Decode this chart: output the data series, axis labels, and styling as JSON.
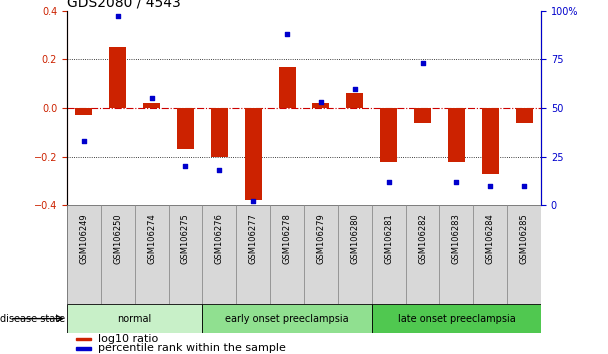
{
  "title": "GDS2080 / 4543",
  "samples": [
    "GSM106249",
    "GSM106250",
    "GSM106274",
    "GSM106275",
    "GSM106276",
    "GSM106277",
    "GSM106278",
    "GSM106279",
    "GSM106280",
    "GSM106281",
    "GSM106282",
    "GSM106283",
    "GSM106284",
    "GSM106285"
  ],
  "log10_ratio": [
    -0.03,
    0.25,
    0.02,
    -0.17,
    -0.2,
    -0.38,
    0.17,
    0.02,
    0.06,
    -0.22,
    -0.06,
    -0.22,
    -0.27,
    -0.06
  ],
  "percentile_rank": [
    33,
    97,
    55,
    20,
    18,
    2,
    88,
    53,
    60,
    12,
    73,
    12,
    10,
    10
  ],
  "groups": [
    {
      "label": "normal",
      "start": 0,
      "end": 3,
      "color": "#c8f0c8"
    },
    {
      "label": "early onset preeclampsia",
      "start": 4,
      "end": 8,
      "color": "#90e090"
    },
    {
      "label": "late onset preeclampsia",
      "start": 9,
      "end": 13,
      "color": "#50c850"
    }
  ],
  "ylim_left": [
    -0.4,
    0.4
  ],
  "ylim_right": [
    0,
    100
  ],
  "bar_color": "#cc2200",
  "dot_color": "#0000cc",
  "zero_line_color": "#cc0000",
  "background_color": "#ffffff",
  "title_fontsize": 10,
  "tick_fontsize": 7,
  "label_fontsize": 7,
  "legend_items": [
    "log10 ratio",
    "percentile rank within the sample"
  ]
}
